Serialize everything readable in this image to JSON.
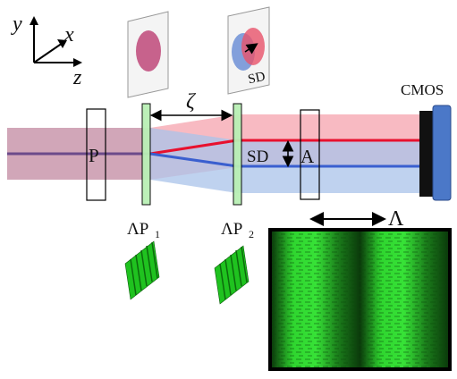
{
  "axes": {
    "y": "y",
    "x": "x",
    "z": "z"
  },
  "labels": {
    "polarizer": "P",
    "analyzer": "A",
    "plate1_main": "ΛP",
    "plate1_sub": "1",
    "plate2_main": "ΛP",
    "plate2_sub": "2",
    "gap": "ζ",
    "shear": "SD",
    "shear_inset": "SD",
    "camera": "CMOS",
    "period": "Λ"
  },
  "colors": {
    "beam_red": "#f5a3ad",
    "beam_blue": "#a9c3ea",
    "beam_overlap": "#c996ab",
    "ray_red": "#e8102e",
    "ray_blue": "#3a5fcf",
    "ray_overlap": "#6b4a8a",
    "plate": "#b9f0b5",
    "grating_green": "#1fc21f",
    "camera_body": "#4b78c8"
  },
  "icons": [
    "coordinate-axes-icon",
    "beam-spot-icon",
    "split-beam-spots-icon",
    "grating-stack-icon",
    "cmos-camera-icon",
    "microscope-grating-image"
  ]
}
